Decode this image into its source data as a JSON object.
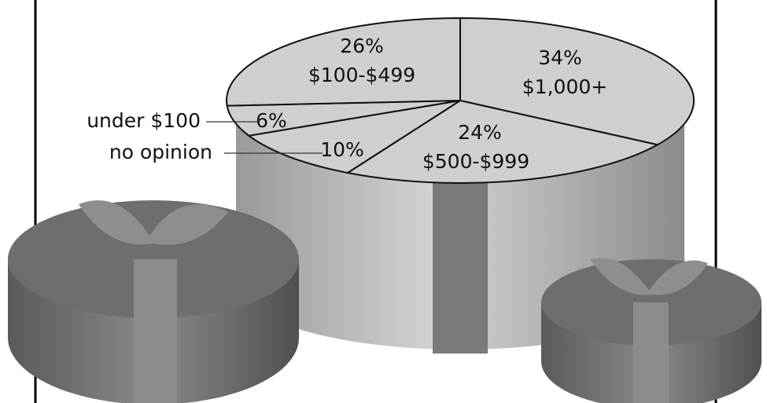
{
  "chart_data": {
    "type": "pie",
    "categories": [
      "$1,000+",
      "$500-$999",
      "no opinion",
      "under $100",
      "$100-$499"
    ],
    "values": [
      34,
      24,
      10,
      6,
      26
    ],
    "value_labels": [
      "34%",
      "24%",
      "10%",
      "6%",
      "26%"
    ],
    "color": "#cfcfcf"
  }
}
